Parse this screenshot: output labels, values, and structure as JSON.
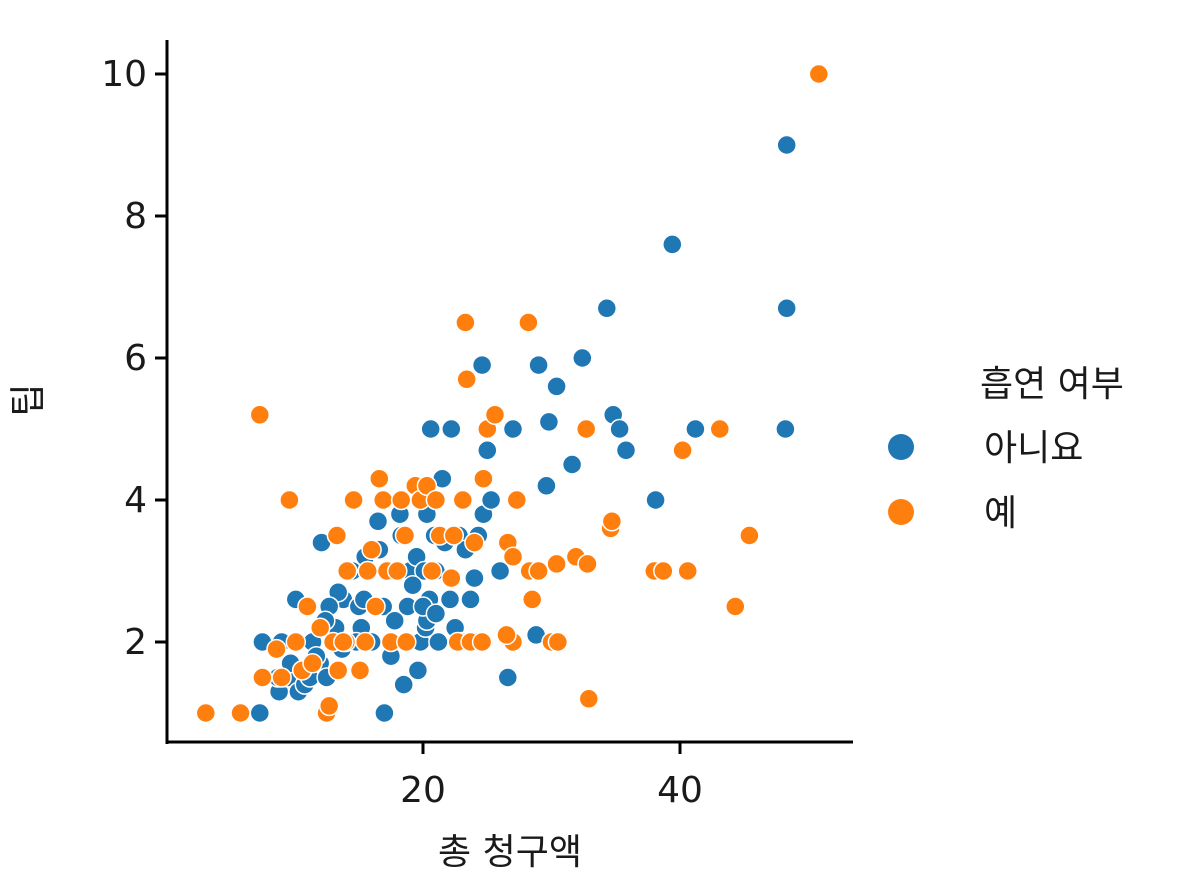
{
  "chart_data": {
    "type": "scatter",
    "title": "",
    "xlabel": "총 청구액",
    "ylabel": "팁",
    "xlim": [
      2,
      55
    ],
    "ylim": [
      0.6,
      10.9
    ],
    "xticks": [
      20,
      40
    ],
    "yticks": [
      2,
      4,
      6,
      8,
      10
    ],
    "grid": false,
    "legend": {
      "title": "흡연 여부",
      "placement": "right"
    },
    "series": [
      {
        "name": "아니요",
        "color": "#1f77b4",
        "points": [
          [
            7.3,
            1.0
          ],
          [
            8.8,
            1.3
          ],
          [
            9.5,
            1.5
          ],
          [
            10.3,
            1.3
          ],
          [
            10.8,
            1.4
          ],
          [
            11.2,
            1.5
          ],
          [
            12.0,
            1.7
          ],
          [
            12.5,
            1.5
          ],
          [
            13.0,
            2.0
          ],
          [
            13.2,
            2.2
          ],
          [
            13.8,
            2.6
          ],
          [
            14.3,
            2.0
          ],
          [
            14.5,
            3.0
          ],
          [
            15.0,
            2.5
          ],
          [
            15.2,
            2.2
          ],
          [
            15.5,
            3.2
          ],
          [
            16.0,
            2.0
          ],
          [
            16.3,
            2.5
          ],
          [
            16.5,
            3.7
          ],
          [
            17.0,
            1.0
          ],
          [
            17.5,
            1.8
          ],
          [
            18.0,
            3.0
          ],
          [
            18.3,
            3.5
          ],
          [
            18.5,
            1.4
          ],
          [
            18.8,
            2.5
          ],
          [
            19.0,
            3.0
          ],
          [
            19.5,
            3.2
          ],
          [
            19.8,
            2.0
          ],
          [
            20.1,
            3.0
          ],
          [
            20.2,
            2.2
          ],
          [
            20.3,
            3.8
          ],
          [
            20.5,
            2.6
          ],
          [
            20.6,
            5.0
          ],
          [
            20.9,
            3.5
          ],
          [
            21.0,
            3.0
          ],
          [
            21.5,
            4.3
          ],
          [
            21.7,
            3.4
          ],
          [
            22.2,
            5.0
          ],
          [
            22.5,
            2.2
          ],
          [
            22.8,
            3.5
          ],
          [
            23.0,
            2.0
          ],
          [
            23.3,
            3.3
          ],
          [
            23.7,
            2.6
          ],
          [
            24.0,
            2.9
          ],
          [
            24.3,
            3.5
          ],
          [
            24.7,
            3.8
          ],
          [
            25.0,
            4.7
          ],
          [
            24.6,
            5.9
          ],
          [
            25.3,
            4.0
          ],
          [
            26.6,
            1.5
          ],
          [
            27.0,
            5.0
          ],
          [
            28.8,
            2.1
          ],
          [
            29.0,
            5.9
          ],
          [
            29.6,
            4.2
          ],
          [
            29.8,
            5.1
          ],
          [
            30.4,
            5.6
          ],
          [
            31.6,
            4.5
          ],
          [
            32.4,
            6.0
          ],
          [
            34.3,
            6.7
          ],
          [
            34.8,
            5.2
          ],
          [
            35.3,
            5.0
          ],
          [
            35.8,
            4.7
          ],
          [
            38.1,
            4.0
          ],
          [
            39.4,
            7.6
          ],
          [
            41.2,
            5.0
          ],
          [
            48.3,
            9.0
          ],
          [
            48.3,
            6.7
          ],
          [
            48.2,
            5.0
          ],
          [
            8.7,
            1.5
          ],
          [
            9.0,
            2.0
          ],
          [
            10.1,
            2.6
          ],
          [
            11.4,
            2.0
          ],
          [
            12.1,
            3.4
          ],
          [
            13.4,
            2.7
          ],
          [
            14.1,
            3.0
          ],
          [
            15.7,
            3.0
          ],
          [
            16.9,
            2.5
          ],
          [
            17.8,
            2.3
          ],
          [
            18.2,
            3.8
          ],
          [
            19.2,
            2.8
          ],
          [
            20.3,
            2.3
          ],
          [
            21.2,
            2.0
          ],
          [
            22.1,
            2.6
          ],
          [
            24.1,
            2.0
          ],
          [
            7.5,
            2.0
          ],
          [
            9.7,
            1.7
          ],
          [
            10.6,
            1.6
          ],
          [
            12.7,
            2.5
          ],
          [
            14.8,
            2.0
          ],
          [
            16.6,
            3.3
          ],
          [
            18.6,
            2.0
          ],
          [
            20.0,
            2.5
          ],
          [
            21.0,
            2.4
          ],
          [
            15.4,
            2.6
          ],
          [
            17.2,
            3.0
          ],
          [
            19.6,
            1.6
          ],
          [
            13.7,
            1.9
          ],
          [
            12.4,
            2.3
          ],
          [
            11.7,
            1.8
          ],
          [
            26.0,
            3.0
          ]
        ]
      },
      {
        "name": "예",
        "color": "#ff7f0e",
        "points": [
          [
            3.1,
            1.0
          ],
          [
            5.8,
            1.0
          ],
          [
            7.3,
            5.2
          ],
          [
            7.5,
            1.5
          ],
          [
            8.6,
            1.9
          ],
          [
            9.6,
            4.0
          ],
          [
            10.1,
            2.0
          ],
          [
            10.6,
            1.6
          ],
          [
            11.0,
            2.5
          ],
          [
            11.4,
            1.7
          ],
          [
            12.0,
            2.2
          ],
          [
            12.5,
            1.0
          ],
          [
            12.7,
            1.1
          ],
          [
            13.0,
            2.0
          ],
          [
            13.4,
            1.6
          ],
          [
            13.3,
            3.5
          ],
          [
            14.0,
            2.0
          ],
          [
            14.6,
            4.0
          ],
          [
            15.1,
            1.6
          ],
          [
            15.5,
            2.0
          ],
          [
            15.7,
            3.0
          ],
          [
            16.3,
            2.5
          ],
          [
            16.6,
            4.3
          ],
          [
            16.9,
            4.0
          ],
          [
            17.2,
            3.0
          ],
          [
            17.5,
            2.0
          ],
          [
            18.0,
            3.0
          ],
          [
            18.3,
            4.0
          ],
          [
            18.6,
            3.5
          ],
          [
            19.4,
            4.2
          ],
          [
            19.8,
            4.0
          ],
          [
            20.3,
            4.2
          ],
          [
            20.7,
            3.0
          ],
          [
            21.0,
            4.0
          ],
          [
            21.3,
            3.5
          ],
          [
            22.2,
            2.9
          ],
          [
            22.7,
            2.0
          ],
          [
            23.1,
            4.0
          ],
          [
            23.3,
            6.5
          ],
          [
            23.4,
            5.7
          ],
          [
            23.7,
            2.0
          ],
          [
            24.0,
            3.4
          ],
          [
            24.6,
            2.0
          ],
          [
            24.7,
            4.3
          ],
          [
            25.0,
            5.0
          ],
          [
            25.6,
            5.2
          ],
          [
            26.6,
            3.4
          ],
          [
            27.0,
            3.2
          ],
          [
            27.0,
            2.0
          ],
          [
            27.3,
            4.0
          ],
          [
            28.2,
            6.5
          ],
          [
            28.3,
            3.0
          ],
          [
            28.5,
            2.6
          ],
          [
            29.0,
            3.0
          ],
          [
            30.0,
            2.0
          ],
          [
            30.4,
            3.1
          ],
          [
            30.5,
            2.0
          ],
          [
            31.9,
            3.2
          ],
          [
            32.7,
            5.0
          ],
          [
            32.8,
            3.1
          ],
          [
            32.9,
            1.2
          ],
          [
            34.6,
            3.6
          ],
          [
            34.7,
            3.7
          ],
          [
            38.0,
            3.0
          ],
          [
            38.7,
            3.0
          ],
          [
            40.2,
            4.7
          ],
          [
            40.6,
            3.0
          ],
          [
            43.1,
            5.0
          ],
          [
            44.3,
            2.5
          ],
          [
            45.4,
            3.5
          ],
          [
            50.8,
            10.0
          ],
          [
            9.0,
            1.5
          ],
          [
            14.1,
            3.0
          ],
          [
            16.0,
            3.3
          ],
          [
            18.7,
            2.0
          ],
          [
            22.4,
            3.5
          ],
          [
            26.5,
            2.1
          ],
          [
            13.8,
            2.0
          ]
        ]
      }
    ]
  }
}
